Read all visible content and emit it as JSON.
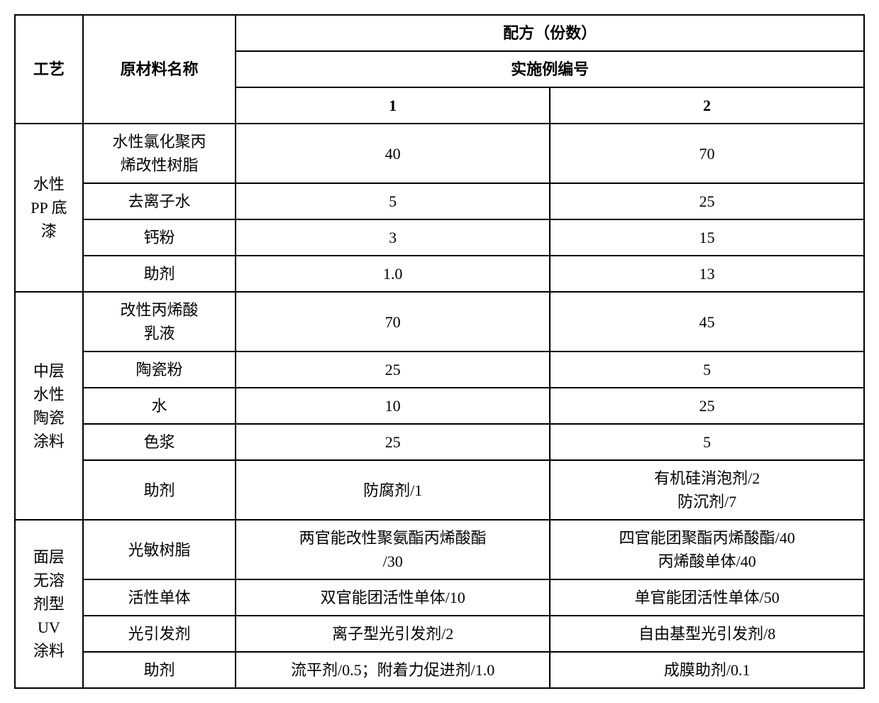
{
  "headers": {
    "process": "工艺",
    "material": "原材料名称",
    "formula": "配方（份数）",
    "example": "实施例编号",
    "col1": "1",
    "col2": "2"
  },
  "sections": [
    {
      "process": "水性\nPP 底\n漆",
      "rows": [
        {
          "material": "水性氯化聚丙\n烯改性树脂",
          "v1": "40",
          "v2": "70"
        },
        {
          "material": "去离子水",
          "v1": "5",
          "v2": "25"
        },
        {
          "material": "钙粉",
          "v1": "3",
          "v2": "15"
        },
        {
          "material": "助剂",
          "v1": "1.0",
          "v2": "13"
        }
      ]
    },
    {
      "process": "中层\n水性\n陶瓷\n涂料",
      "rows": [
        {
          "material": "改性丙烯酸\n乳液",
          "v1": "70",
          "v2": "45"
        },
        {
          "material": "陶瓷粉",
          "v1": "25",
          "v2": "5"
        },
        {
          "material": "水",
          "v1": "10",
          "v2": "25"
        },
        {
          "material": "色浆",
          "v1": "25",
          "v2": "5"
        },
        {
          "material": "助剂",
          "v1": "防腐剂/1",
          "v2": "有机硅消泡剂/2\n防沉剂/7"
        }
      ]
    },
    {
      "process": "面层\n无溶\n剂型\nUV\n涂料",
      "rows": [
        {
          "material": "光敏树脂",
          "v1": "两官能改性聚氨酯丙烯酸酯\n/30",
          "v2": "四官能团聚酯丙烯酸酯/40\n丙烯酸单体/40"
        },
        {
          "material": "活性单体",
          "v1": "双官能团活性单体/10",
          "v2": "单官能团活性单体/50"
        },
        {
          "material": "光引发剂",
          "v1": "离子型光引发剂/2",
          "v2": "自由基型光引发剂/8"
        },
        {
          "material": "助剂",
          "v1": "流平剂/0.5；附着力促进剂/1.0",
          "v2": "成膜助剂/0.1"
        }
      ]
    }
  ],
  "styling": {
    "border_color": "#000000",
    "background_color": "#ffffff",
    "text_color": "#000000",
    "font_size": 22,
    "border_width": 2
  }
}
